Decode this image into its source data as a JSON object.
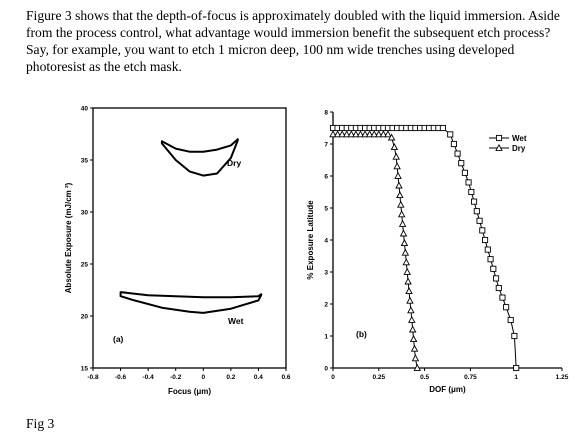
{
  "question": "Figure 3 shows that the depth-of-focus is approximately doubled with the liquid immersion. Aside from the process control, what advantage would immersion benefit the subsequent etch process? Say, for example, you want to etch 1 micron deep, 100 nm wide trenches using developed photoresist as the etch mask.",
  "caption": "Fig 3",
  "chart_data": [
    {
      "type": "line",
      "panel_label": "(a)",
      "xlabel": "Focus (μm)",
      "ylabel": "Absolute Exposure (mJ/cm ²)",
      "xlim": [
        -0.8,
        0.6
      ],
      "ylim": [
        15,
        40
      ],
      "x_ticks": [
        -0.8,
        -0.6,
        -0.4,
        -0.2,
        0,
        0.2,
        0.4,
        0.6
      ],
      "x_tick_labels": [
        "-0.8",
        "-0.6",
        "-0.4",
        "-0.2",
        "0",
        "0.2",
        "0.4",
        "0.6"
      ],
      "y_ticks": [
        15,
        20,
        25,
        30,
        35,
        40
      ],
      "y_tick_labels": [
        "15",
        "20",
        "25",
        "30",
        "35",
        "40"
      ],
      "grid": false,
      "legend": false,
      "series": [
        {
          "name": "Dry",
          "upper": [
            [
              -0.3,
              36.8
            ],
            [
              -0.2,
              36.1
            ],
            [
              -0.1,
              35.8
            ],
            [
              0.0,
              35.8
            ],
            [
              0.1,
              36.0
            ],
            [
              0.2,
              36.4
            ],
            [
              0.25,
              37.0
            ]
          ],
          "lower": [
            [
              -0.3,
              36.6
            ],
            [
              -0.2,
              35.0
            ],
            [
              -0.1,
              33.9
            ],
            [
              0.0,
              33.5
            ],
            [
              0.1,
              33.7
            ],
            [
              0.2,
              35.2
            ],
            [
              0.25,
              36.9
            ]
          ]
        },
        {
          "name": "Wet",
          "upper": [
            [
              -0.6,
              22.3
            ],
            [
              -0.4,
              22.0
            ],
            [
              -0.2,
              21.9
            ],
            [
              0.0,
              21.8
            ],
            [
              0.2,
              21.8
            ],
            [
              0.4,
              21.9
            ],
            [
              0.42,
              22.1
            ]
          ],
          "lower": [
            [
              -0.6,
              21.9
            ],
            [
              -0.5,
              21.5
            ],
            [
              -0.3,
              20.8
            ],
            [
              -0.1,
              20.4
            ],
            [
              0.0,
              20.3
            ],
            [
              0.2,
              20.7
            ],
            [
              0.4,
              21.5
            ],
            [
              0.42,
              22.0
            ]
          ]
        }
      ]
    },
    {
      "type": "line",
      "panel_label": "(b)",
      "xlabel": "DOF (μm)",
      "ylabel": "% Exposure Latitude",
      "xlim": [
        0,
        1.25
      ],
      "ylim": [
        0,
        8
      ],
      "x_ticks": [
        0,
        0.25,
        0.5,
        0.75,
        1,
        1.25
      ],
      "x_tick_labels": [
        "0",
        "0.25",
        "0.5",
        "0.75",
        "1",
        "1.25"
      ],
      "y_ticks": [
        0,
        1,
        2,
        3,
        4,
        5,
        6,
        7,
        8
      ],
      "y_tick_labels": [
        "0",
        "1",
        "2",
        "3",
        "4",
        "5",
        "6",
        "7",
        "8"
      ],
      "grid": false,
      "legend": "top-right",
      "series": [
        {
          "name": "Wet",
          "marker": "square",
          "points": [
            [
              0.0,
              7.5
            ],
            [
              0.025,
              7.5
            ],
            [
              0.05,
              7.5
            ],
            [
              0.075,
              7.5
            ],
            [
              0.1,
              7.5
            ],
            [
              0.125,
              7.5
            ],
            [
              0.15,
              7.5
            ],
            [
              0.175,
              7.5
            ],
            [
              0.2,
              7.5
            ],
            [
              0.225,
              7.5
            ],
            [
              0.25,
              7.5
            ],
            [
              0.275,
              7.5
            ],
            [
              0.3,
              7.5
            ],
            [
              0.325,
              7.5
            ],
            [
              0.35,
              7.5
            ],
            [
              0.375,
              7.5
            ],
            [
              0.4,
              7.5
            ],
            [
              0.425,
              7.5
            ],
            [
              0.45,
              7.5
            ],
            [
              0.475,
              7.5
            ],
            [
              0.5,
              7.5
            ],
            [
              0.525,
              7.5
            ],
            [
              0.55,
              7.5
            ],
            [
              0.575,
              7.5
            ],
            [
              0.6,
              7.5
            ],
            [
              0.64,
              7.3
            ],
            [
              0.66,
              7.0
            ],
            [
              0.68,
              6.7
            ],
            [
              0.7,
              6.4
            ],
            [
              0.72,
              6.1
            ],
            [
              0.74,
              5.8
            ],
            [
              0.755,
              5.5
            ],
            [
              0.77,
              5.2
            ],
            [
              0.785,
              4.9
            ],
            [
              0.8,
              4.6
            ],
            [
              0.815,
              4.3
            ],
            [
              0.83,
              4.0
            ],
            [
              0.845,
              3.7
            ],
            [
              0.86,
              3.4
            ],
            [
              0.875,
              3.1
            ],
            [
              0.89,
              2.8
            ],
            [
              0.905,
              2.5
            ],
            [
              0.925,
              2.2
            ],
            [
              0.945,
              1.9
            ],
            [
              0.97,
              1.5
            ],
            [
              0.99,
              1.0
            ],
            [
              1.0,
              0.0
            ]
          ]
        },
        {
          "name": "Dry",
          "marker": "triangle",
          "points": [
            [
              0.0,
              7.3
            ],
            [
              0.025,
              7.3
            ],
            [
              0.05,
              7.3
            ],
            [
              0.075,
              7.3
            ],
            [
              0.1,
              7.3
            ],
            [
              0.125,
              7.3
            ],
            [
              0.15,
              7.3
            ],
            [
              0.175,
              7.3
            ],
            [
              0.2,
              7.3
            ],
            [
              0.225,
              7.3
            ],
            [
              0.25,
              7.3
            ],
            [
              0.275,
              7.3
            ],
            [
              0.3,
              7.3
            ],
            [
              0.32,
              7.2
            ],
            [
              0.335,
              6.9
            ],
            [
              0.345,
              6.6
            ],
            [
              0.35,
              6.3
            ],
            [
              0.355,
              6.0
            ],
            [
              0.36,
              5.7
            ],
            [
              0.365,
              5.4
            ],
            [
              0.37,
              5.1
            ],
            [
              0.375,
              4.8
            ],
            [
              0.38,
              4.5
            ],
            [
              0.385,
              4.2
            ],
            [
              0.39,
              3.9
            ],
            [
              0.395,
              3.6
            ],
            [
              0.4,
              3.3
            ],
            [
              0.405,
              3.0
            ],
            [
              0.41,
              2.7
            ],
            [
              0.415,
              2.4
            ],
            [
              0.42,
              2.1
            ],
            [
              0.425,
              1.8
            ],
            [
              0.43,
              1.5
            ],
            [
              0.435,
              1.2
            ],
            [
              0.44,
              0.9
            ],
            [
              0.445,
              0.6
            ],
            [
              0.45,
              0.3
            ],
            [
              0.46,
              0.0
            ]
          ]
        }
      ]
    }
  ]
}
